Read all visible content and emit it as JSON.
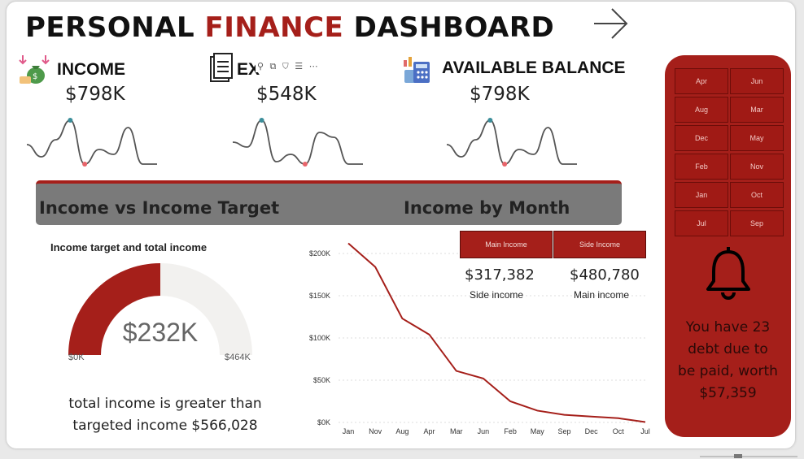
{
  "header": {
    "title_part1": "PERSONAL ",
    "title_accent": "FINANCE",
    "title_part2": " DASHBOARD"
  },
  "kpis": [
    {
      "label": "INCOME",
      "value": "$798K",
      "icon": "money-bag-icon"
    },
    {
      "label": "EX",
      "value": "$548K",
      "icon": "receipt-icon"
    },
    {
      "label": "AVAILABLE BALANCE",
      "value": "$798K",
      "icon": "calculator-icon"
    }
  ],
  "visual_toolbar": {
    "glyphs": "⚲ ⧉ ⛉ ☰ ⋯"
  },
  "sections": {
    "left_title": "Income vs Income Target",
    "right_title": "Income by Month"
  },
  "gauge": {
    "title": "Income target and total income",
    "value_label": "$232K",
    "min_label": "$0K",
    "max_label": "$464K",
    "value": 232,
    "min": 0,
    "max": 464,
    "note_line1": "total income is greater than",
    "note_line2": "targeted income $566,028",
    "fill_color": "#a51f1a",
    "track_color": "#f2f1ef"
  },
  "legend": {
    "main_btn": "Main Income",
    "side_btn": "Side Income"
  },
  "cards": [
    {
      "value": "$317,382",
      "label": "Side income"
    },
    {
      "value": "$480,780",
      "label": "Main income"
    }
  ],
  "chart_data": {
    "type": "line",
    "categories": [
      "Jan",
      "Nov",
      "Aug",
      "Apr",
      "Mar",
      "Jun",
      "Feb",
      "May",
      "Sep",
      "Dec",
      "Oct",
      "Jul"
    ],
    "values": [
      212,
      184,
      123,
      104,
      61,
      52,
      25,
      14,
      9,
      7,
      5,
      0.5
    ],
    "y_ticks": [
      "$0K",
      "$50K",
      "$100K",
      "$150K",
      "$200K"
    ],
    "ylim": [
      0,
      200
    ],
    "grid": true,
    "line_color": "#a51f1a"
  },
  "months_filter": [
    "Apr",
    "Jun",
    "Aug",
    "Mar",
    "Dec",
    "May",
    "Feb",
    "Nov",
    "Jan",
    "Oct",
    "Jul",
    "Sep"
  ],
  "alert": {
    "line1": "You have 23",
    "line2": "debt due to",
    "line3": "be paid, worth",
    "line4": "$57,359"
  },
  "colors": {
    "brand": "#a51f1a",
    "spark_line": "#555555",
    "spark_max": "#3c8e9a",
    "spark_min": "#e8646a"
  },
  "sparklines": [
    [
      0.45,
      0.2,
      0.55,
      0.95,
      0.05,
      0.35,
      0.25,
      0.8,
      0.05,
      0.05
    ],
    [
      0.5,
      0.4,
      0.95,
      0.1,
      0.25,
      0.05,
      0.7,
      0.6,
      0.05,
      0.05
    ],
    [
      0.45,
      0.2,
      0.55,
      0.95,
      0.05,
      0.35,
      0.25,
      0.8,
      0.05,
      0.05
    ]
  ]
}
